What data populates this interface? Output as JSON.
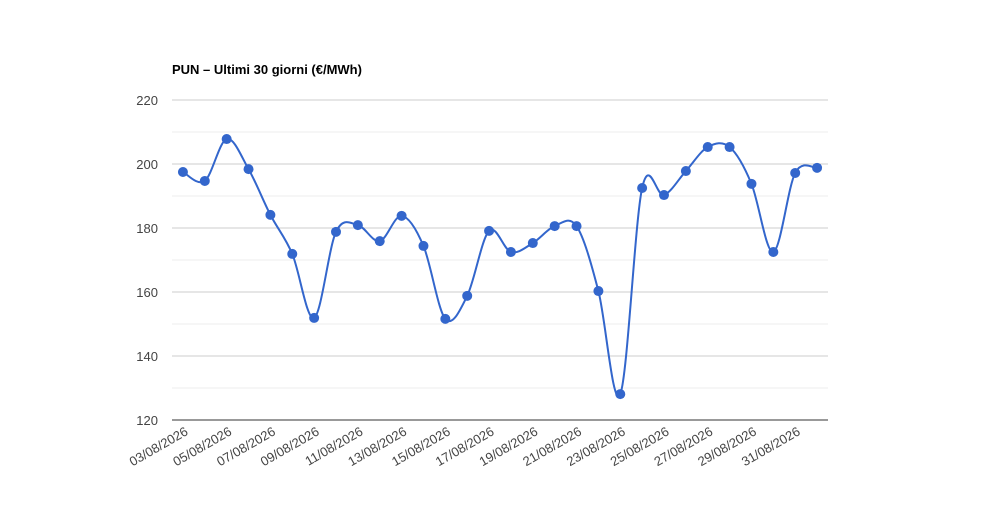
{
  "chart_data": {
    "type": "line",
    "title": "PUN – Ultimi 30 giorni (€/MWh)",
    "categories": [
      "03/08/2026",
      null,
      "05/08/2026",
      null,
      "07/08/2026",
      null,
      "09/08/2026",
      null,
      "11/08/2026",
      null,
      "13/08/2026",
      null,
      "15/08/2026",
      null,
      "17/08/2026",
      null,
      "19/08/2026",
      null,
      "21/08/2026",
      null,
      "23/08/2026",
      null,
      "25/08/2026",
      null,
      "27/08/2026",
      null,
      "29/08/2026",
      null,
      "31/08/2026",
      null
    ],
    "series": [
      {
        "name": "PUN",
        "color": "#3366cc",
        "values": [
          197.5,
          194.7,
          207.8,
          198.4,
          184.1,
          171.9,
          151.9,
          178.8,
          180.9,
          175.9,
          183.8,
          174.4,
          151.6,
          158.8,
          179.1,
          172.5,
          175.3,
          180.6,
          180.6,
          160.3,
          128.1,
          192.5,
          190.3,
          197.8,
          205.3,
          205.3,
          193.8,
          172.5,
          197.2,
          198.8
        ]
      }
    ],
    "ylim": [
      120,
      220
    ],
    "yticks": [
      120,
      140,
      160,
      180,
      200,
      220
    ],
    "grid": true,
    "legend": "none"
  }
}
